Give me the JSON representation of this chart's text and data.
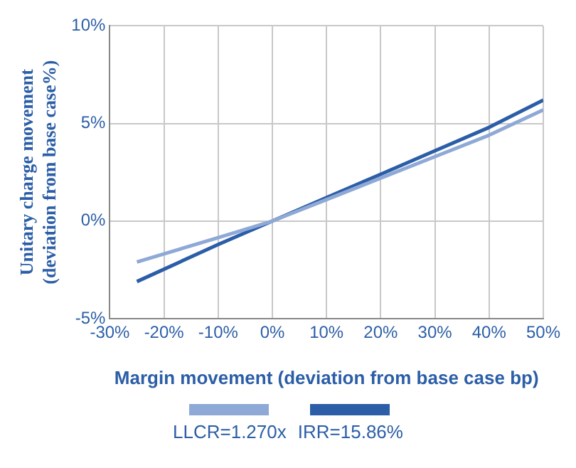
{
  "chart_data": {
    "type": "line",
    "xlabel": "Margin movement (deviation from base case bp)",
    "ylabel": "Unitary charge movement (deviation from base case%)",
    "xlim": [
      -30,
      50
    ],
    "xticks": [
      {
        "value": -30,
        "label": "-30%"
      },
      {
        "value": -20,
        "label": "-20%"
      },
      {
        "value": -10,
        "label": "-10%"
      },
      {
        "value": 0,
        "label": "0%"
      },
      {
        "value": 10,
        "label": "10%"
      },
      {
        "value": 20,
        "label": "20%"
      },
      {
        "value": 30,
        "label": "30%"
      },
      {
        "value": 40,
        "label": "40%"
      },
      {
        "value": 50,
        "label": "50%"
      }
    ],
    "ylim": [
      -5,
      10
    ],
    "yticks": [
      {
        "value": -5,
        "label": "-5%"
      },
      {
        "value": 0,
        "label": "0%"
      },
      {
        "value": 5,
        "label": "5%"
      },
      {
        "value": 10,
        "label": "10%"
      }
    ],
    "x": [
      -25,
      -10,
      0,
      10,
      20,
      30,
      40,
      50
    ],
    "series": [
      {
        "name": "LLCR=1.270x",
        "color": "#8fa9d6",
        "values": [
          -2.1,
          -0.85,
          0,
          1.1,
          2.2,
          3.3,
          4.4,
          5.7
        ]
      },
      {
        "name": "IRR=15.86%",
        "color": "#2b5ea7",
        "values": [
          -3.1,
          -1.2,
          0,
          1.2,
          2.4,
          3.6,
          4.8,
          6.2
        ]
      }
    ],
    "grid": true,
    "legend": "bottom",
    "marker": "none",
    "line_style": "solid"
  }
}
